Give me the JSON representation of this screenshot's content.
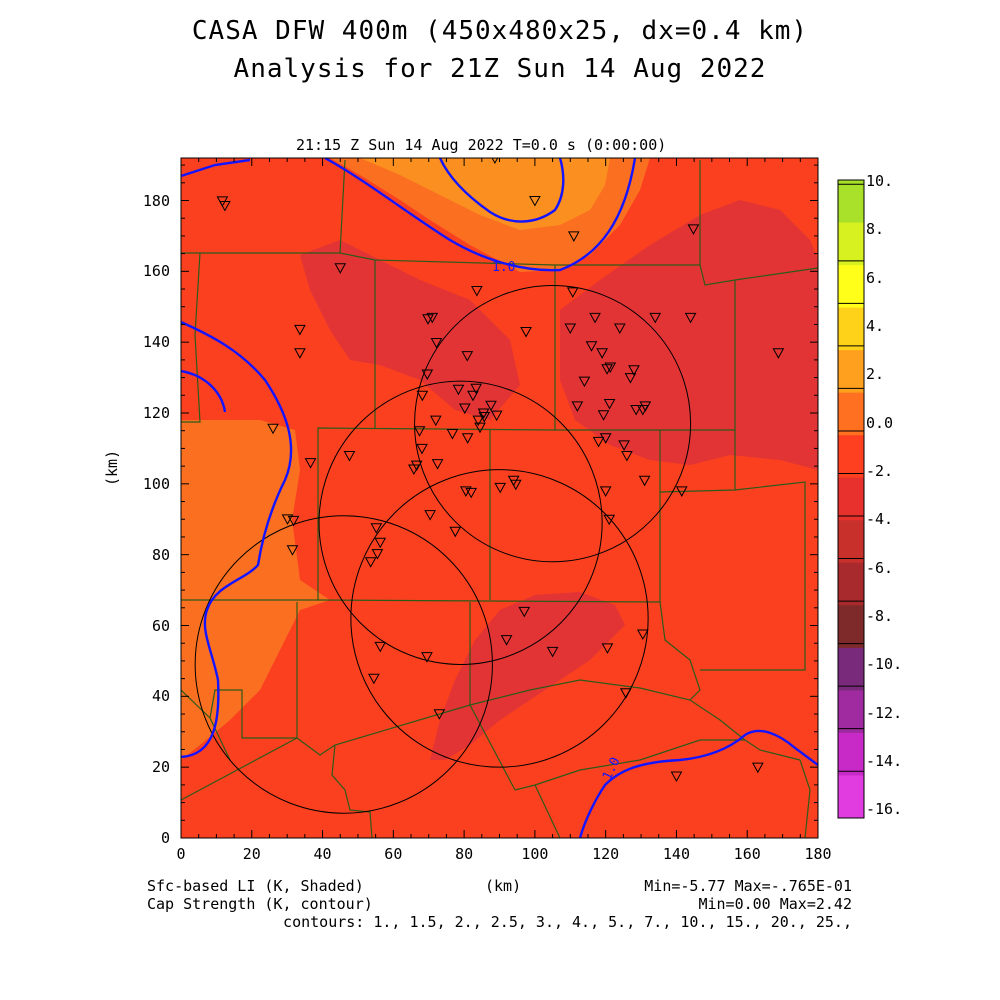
{
  "header": {
    "title_line1": "CASA DFW 400m (450x480x25, dx=0.4 km)",
    "title_line2": "Analysis for 21Z Sun 14 Aug 2022",
    "valid_time": "21:15 Z Sun 14 Aug 2022    T=0.0 s (0:00:00)"
  },
  "axes": {
    "y_label": "(km)",
    "x_label": "(km)",
    "x_ticks": [
      "0",
      "20",
      "40",
      "60",
      "80",
      "100",
      "120",
      "140",
      "160",
      "180"
    ],
    "y_ticks": [
      "0",
      "20",
      "40",
      "60",
      "80",
      "100",
      "120",
      "140",
      "160",
      "180"
    ],
    "x_range": [
      0,
      180
    ],
    "y_range": [
      0,
      192
    ]
  },
  "colorbar": {
    "labels": [
      "10.",
      "8.",
      "6.",
      "4.",
      "2.",
      "0.0",
      "-2.",
      "-4.",
      "-6.",
      "-8.",
      "-10.",
      "-12.",
      "-14.",
      "-16."
    ],
    "colors": [
      "#a8e02a",
      "#d6f020",
      "#ffff1a",
      "#ffd21a",
      "#ffa01e",
      "#ff7020",
      "#ff4020",
      "#e8302c",
      "#c8302c",
      "#a82a2c",
      "#7f2a2a",
      "#7a2a7a",
      "#a02aa0",
      "#c82ac8",
      "#e03ce0"
    ]
  },
  "field_colors": {
    "li_0_to_neg2": "#fb7020",
    "li_neg2_to_neg4": "#fb4020",
    "li_neg4_to_neg6": "#e23434",
    "li_2_to_0": "#fb9020",
    "cap_contour": "#1414ff",
    "county_lines": "#2e5a18"
  },
  "contour_labels": [
    "1.0",
    "1.0"
  ],
  "footer": {
    "left_line1": "Sfc-based LI (K, Shaded)",
    "left_line2": "Cap Strength (K, contour)",
    "center": "(km)",
    "right_line1": "Min=-5.77 Max=-.765E-01",
    "right_line2": "Min=0.00 Max=2.42",
    "contours": "contours: 1., 1.5, 2., 2.5, 3., 4., 5., 7., 10., 15., 20., 25.,"
  },
  "radar_rings_km": [
    {
      "cx": 105,
      "cy": 117,
      "r": 39
    },
    {
      "cx": 79,
      "cy": 89,
      "r": 40
    },
    {
      "cx": 46,
      "cy": 49,
      "r": 42
    },
    {
      "cx": 90,
      "cy": 62,
      "r": 42
    }
  ],
  "stations_km": [
    [
      11.7,
      179.9
    ],
    [
      12.4,
      178.6
    ],
    [
      45,
      161
    ],
    [
      33.6,
      143.6
    ],
    [
      33.6,
      137
    ],
    [
      26,
      115.7
    ],
    [
      36.6,
      106
    ],
    [
      47.6,
      108
    ],
    [
      30.1,
      90.1
    ],
    [
      31.8,
      89.7
    ],
    [
      31.5,
      81.4
    ],
    [
      53.6,
      78
    ],
    [
      55.5,
      80.3
    ],
    [
      56.3,
      83.5
    ],
    [
      55.2,
      87.6
    ],
    [
      56.3,
      54.1
    ],
    [
      54.5,
      45.1
    ],
    [
      73,
      35.1
    ],
    [
      69.5,
      51.2
    ],
    [
      70.4,
      91.3
    ],
    [
      65.8,
      104.2
    ],
    [
      66.6,
      105.3
    ],
    [
      68.1,
      110
    ],
    [
      72.5,
      105.7
    ],
    [
      67.4,
      115
    ],
    [
      72,
      118
    ],
    [
      69.6,
      131
    ],
    [
      68.2,
      125
    ],
    [
      69.8,
      146.6
    ],
    [
      71,
      147
    ],
    [
      72.2,
      139.9
    ],
    [
      76.7,
      114.2
    ],
    [
      78.4,
      126.7
    ],
    [
      80.2,
      121.4
    ],
    [
      80.9,
      136.2
    ],
    [
      81,
      113
    ],
    [
      82.5,
      125
    ],
    [
      83.4,
      127
    ],
    [
      84.5,
      116
    ],
    [
      84,
      118
    ],
    [
      85.5,
      120
    ],
    [
      85.7,
      119
    ],
    [
      87.6,
      122.2
    ],
    [
      89.2,
      119.4
    ],
    [
      83.6,
      154.6
    ],
    [
      88.7,
      192
    ],
    [
      100,
      180
    ],
    [
      97.5,
      143
    ],
    [
      111,
      170
    ],
    [
      110.7,
      154.2
    ],
    [
      110,
      144
    ],
    [
      112,
      122
    ],
    [
      114,
      129
    ],
    [
      116,
      139
    ],
    [
      117,
      147
    ],
    [
      118,
      112
    ],
    [
      120,
      113
    ],
    [
      119.4,
      119.5
    ],
    [
      121.1,
      122.7
    ],
    [
      120.4,
      132.5
    ],
    [
      121.3,
      133
    ],
    [
      119,
      137
    ],
    [
      124,
      144
    ],
    [
      125.2,
      111
    ],
    [
      126,
      108
    ],
    [
      127,
      130
    ],
    [
      128,
      132.2
    ],
    [
      128.6,
      121
    ],
    [
      130.5,
      121
    ],
    [
      131.2,
      122
    ],
    [
      134,
      147
    ],
    [
      144,
      147
    ],
    [
      144.8,
      172
    ],
    [
      141.5,
      98
    ],
    [
      131,
      101
    ],
    [
      120,
      98
    ],
    [
      121,
      90
    ],
    [
      80.5,
      98
    ],
    [
      82,
      97.6
    ],
    [
      90.2,
      99
    ],
    [
      94,
      101
    ],
    [
      94.6,
      99.9
    ],
    [
      77.5,
      86.6
    ],
    [
      97,
      64
    ],
    [
      92,
      56
    ],
    [
      105,
      52.7
    ],
    [
      120.5,
      53.7
    ],
    [
      130.5,
      57.6
    ],
    [
      125.7,
      41
    ],
    [
      140,
      17.5
    ],
    [
      163,
      20
    ],
    [
      168.8,
      137
    ]
  ]
}
